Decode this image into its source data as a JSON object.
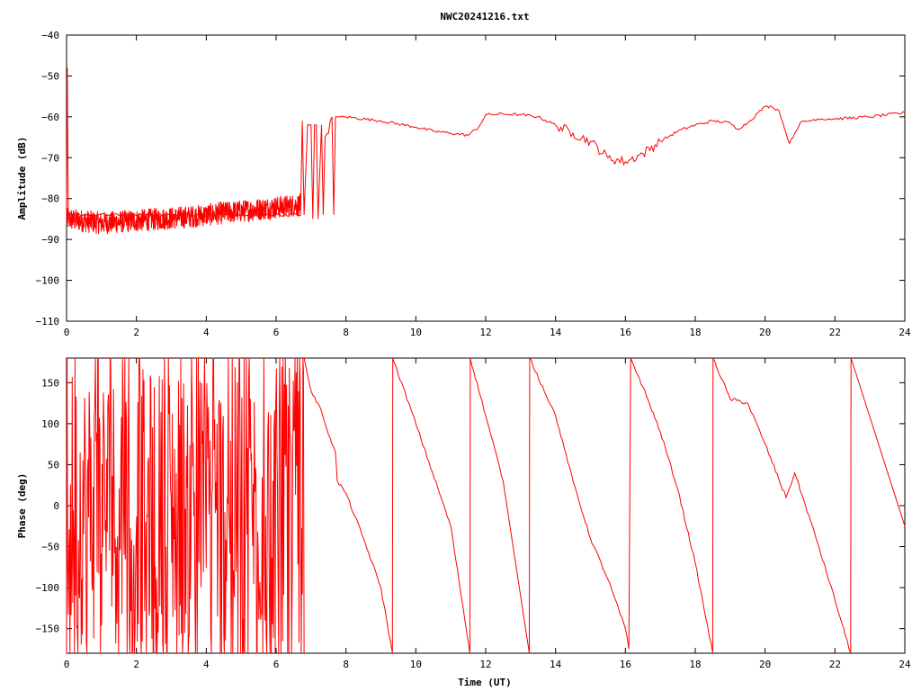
{
  "title": "NWC20241216.txt",
  "colors": {
    "trace": "#ff0000",
    "axes": "#000000",
    "background": "#ffffff"
  },
  "chart_data": [
    {
      "type": "line",
      "name": "amplitude",
      "ylabel": "Amplitude (dB)",
      "xlabel": "",
      "xlim": [
        0,
        24
      ],
      "ylim": [
        -110,
        -40
      ],
      "xticks": [
        0,
        2,
        4,
        6,
        8,
        10,
        12,
        14,
        16,
        18,
        20,
        22,
        24
      ],
      "yticks": [
        -110,
        -100,
        -90,
        -80,
        -70,
        -60,
        -50,
        -40
      ],
      "grid": false,
      "noisy_segments": [
        {
          "x": [
            0,
            1.0,
            3.5,
            4.5,
            6.7
          ],
          "y": [
            -85,
            -86,
            -84.5,
            -83.5,
            -81.5
          ],
          "spread": 2.8
        }
      ],
      "x": [
        0,
        0.02,
        0.05,
        6.7,
        6.75,
        6.8,
        6.9,
        7.0,
        7.05,
        7.1,
        7.15,
        7.2,
        7.3,
        7.35,
        7.4,
        7.5,
        7.55,
        7.6,
        7.65,
        7.7,
        7.75,
        7.8,
        8.0,
        9.0,
        10.0,
        10.5,
        11.0,
        11.5,
        11.8,
        12.0,
        12.5,
        13.0,
        13.5,
        14.0,
        14.5,
        15.0,
        15.5,
        16.0,
        16.5,
        17.0,
        17.5,
        18.0,
        18.5,
        19.0,
        19.2,
        19.5,
        19.8,
        20.0,
        20.2,
        20.4,
        20.6,
        20.7,
        21.0,
        21.5,
        22.0,
        23.0,
        24.0
      ],
      "y": [
        -84,
        -48,
        -84,
        -84,
        -61,
        -84,
        -62,
        -62,
        -85,
        -62,
        -62,
        -85,
        -62,
        -84,
        -65,
        -64,
        -61,
        -60,
        -84,
        -60,
        -60,
        -60,
        -60,
        -61,
        -62.5,
        -63.5,
        -64,
        -64.5,
        -62.5,
        -59.5,
        -59.3,
        -59.5,
        -60,
        -62,
        -64,
        -66,
        -70,
        -71,
        -69,
        -66,
        -63.5,
        -62,
        -61,
        -61.5,
        -63,
        -61.5,
        -59,
        -57.5,
        -57.5,
        -58.5,
        -64,
        -66.5,
        -61.5,
        -60.5,
        -60.5,
        -60,
        -59
      ]
    },
    {
      "type": "line",
      "name": "phase",
      "ylabel": "Phase (deg)",
      "xlabel": "Time (UT)",
      "xlim": [
        0,
        24
      ],
      "ylim": [
        -180,
        180
      ],
      "xticks": [
        0,
        2,
        4,
        6,
        8,
        10,
        12,
        14,
        16,
        18,
        20,
        22,
        24
      ],
      "yticks": [
        -150,
        -100,
        -50,
        0,
        50,
        100,
        150
      ],
      "grid": false,
      "noisy_segments": [
        {
          "x": [
            0,
            6.8
          ],
          "y": [
            0,
            0
          ],
          "spread": 170
        }
      ],
      "x": [
        6.8,
        7.0,
        7.3,
        7.6,
        7.7,
        7.75,
        8.0,
        8.5,
        9.0,
        9.33,
        9.34,
        10.0,
        11.0,
        11.55,
        11.56,
        12.0,
        12.5,
        13.25,
        13.26,
        14.0,
        14.5,
        15.0,
        15.5,
        16.0,
        16.1,
        16.15,
        16.5,
        17.0,
        17.5,
        18.0,
        18.5,
        18.51,
        19.0,
        19.5,
        20.0,
        20.6,
        20.85,
        21.5,
        22.0,
        22.45,
        22.46,
        24.0
      ],
      "y": [
        180,
        140,
        115,
        75,
        65,
        30,
        15,
        -40,
        -100,
        -180,
        180,
        100,
        -25,
        -180,
        180,
        110,
        30,
        -180,
        180,
        110,
        30,
        -40,
        -90,
        -150,
        -175,
        180,
        145,
        90,
        20,
        -70,
        -180,
        180,
        130,
        125,
        75,
        10,
        40,
        -45,
        -115,
        -180,
        180,
        -25
      ]
    }
  ]
}
